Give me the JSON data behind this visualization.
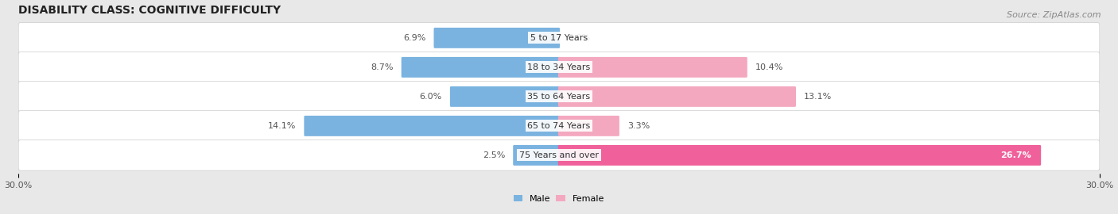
{
  "title": "DISABILITY CLASS: COGNITIVE DIFFICULTY",
  "source": "Source: ZipAtlas.com",
  "categories": [
    "5 to 17 Years",
    "18 to 34 Years",
    "35 to 64 Years",
    "65 to 74 Years",
    "75 Years and over"
  ],
  "male_values": [
    6.9,
    8.7,
    6.0,
    14.1,
    2.5
  ],
  "female_values": [
    0.0,
    10.4,
    13.1,
    3.3,
    26.7
  ],
  "male_color": "#7ab3e0",
  "female_color_normal": "#f4a8c0",
  "female_color_highlight": "#f0609a",
  "female_highlight_index": 4,
  "male_label": "Male",
  "female_label": "Female",
  "xlim": 30.0,
  "bg_color": "#e8e8e8",
  "row_bg_color": "#f2f2f2",
  "title_fontsize": 10,
  "source_fontsize": 8,
  "label_fontsize": 8,
  "value_fontsize": 8,
  "axis_label_fontsize": 8
}
